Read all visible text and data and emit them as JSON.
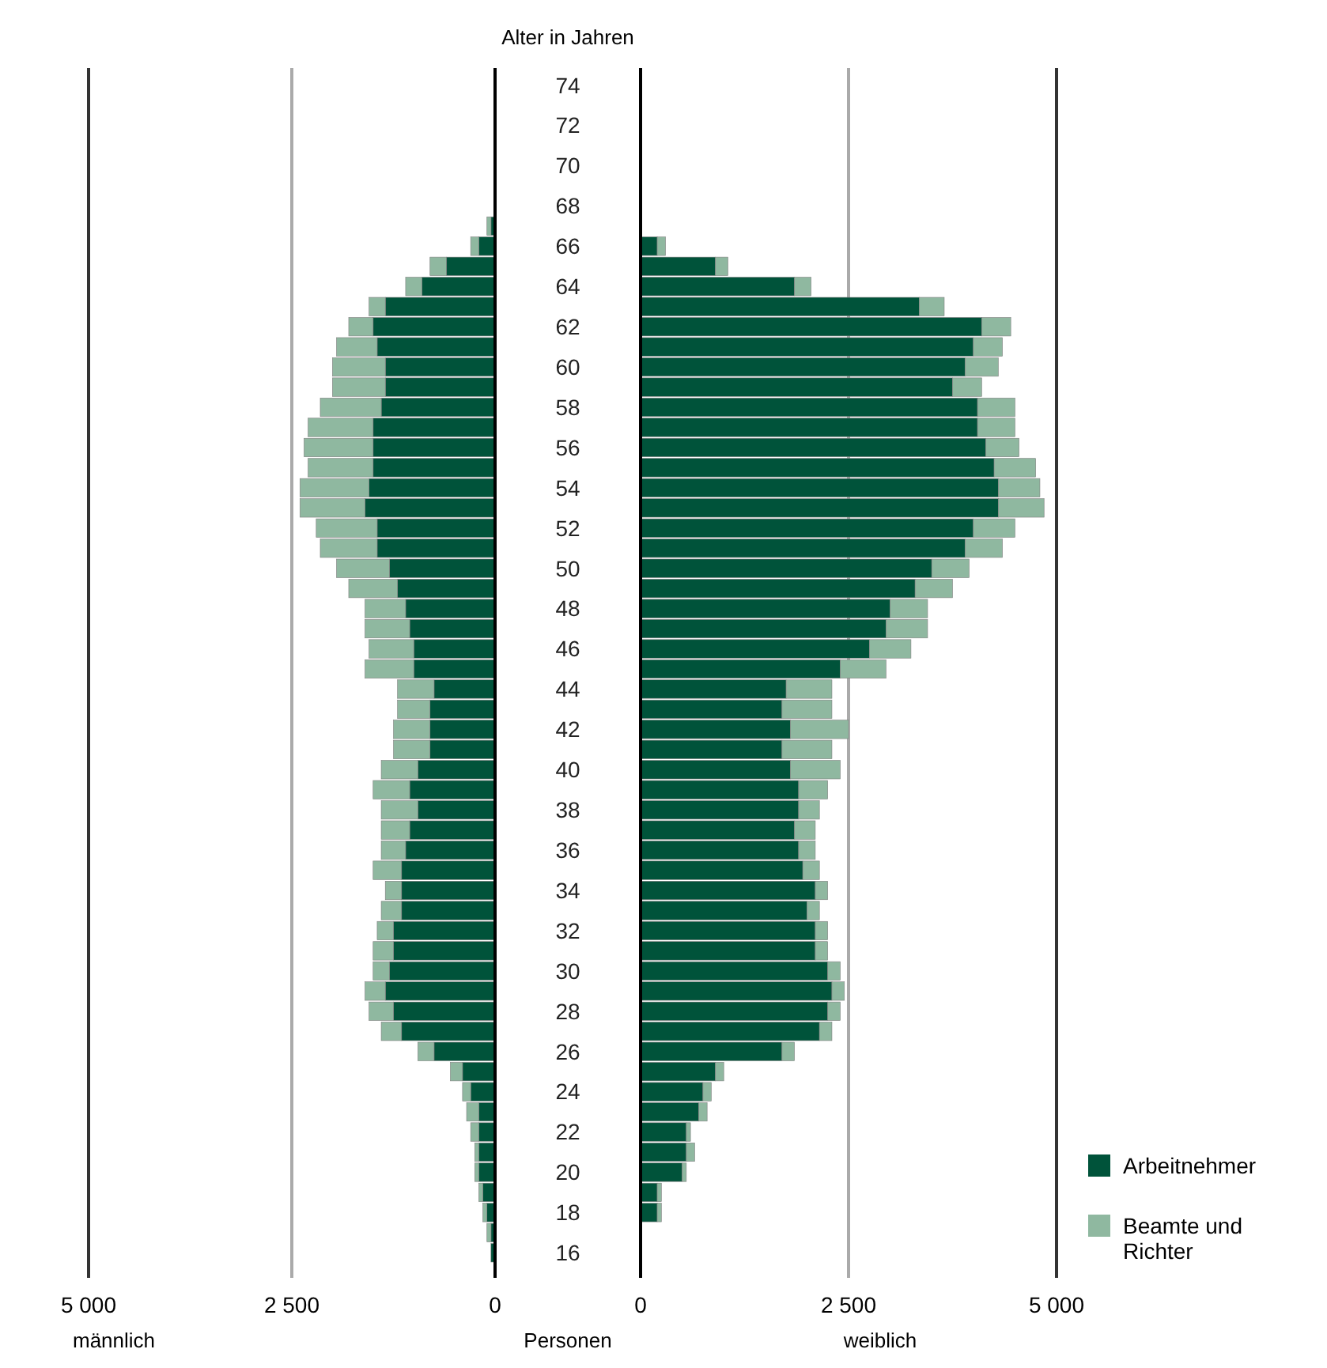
{
  "chart_data": [
    {
      "type": "bar",
      "orientation": "horizontal",
      "stacked": true,
      "ylabel": "Alter in Jahren",
      "xlabel": "männlich",
      "annotations": [
        "Personen"
      ],
      "categories": [
        "74",
        null,
        "72",
        null,
        "70",
        null,
        "68",
        null,
        "66",
        null,
        "64",
        null,
        "62",
        null,
        "60",
        null,
        "58",
        null,
        "56",
        null,
        "54",
        null,
        "52",
        null,
        "50",
        null,
        "48",
        null,
        "46",
        null,
        "44",
        null,
        "42",
        null,
        "40",
        null,
        "38",
        null,
        "36",
        null,
        "34",
        null,
        "32",
        null,
        "30",
        null,
        "28",
        null,
        "26",
        null,
        "24",
        null,
        "22",
        null,
        "20",
        null,
        "18",
        null,
        "16"
      ],
      "series": [
        {
          "color": "#00533a",
          "values": [
            null,
            null,
            null,
            null,
            null,
            null,
            null,
            50,
            200,
            600,
            900,
            1350,
            1500,
            1450,
            1350,
            1350,
            1400,
            1500,
            1500,
            1500,
            1550,
            1600,
            1450,
            1450,
            1300,
            1200,
            1100,
            1050,
            1000,
            1000,
            750,
            800,
            800,
            800,
            950,
            1050,
            950,
            1050,
            1100,
            1150,
            1150,
            1150,
            1250,
            1250,
            1300,
            1350,
            1250,
            1150,
            750,
            400,
            300,
            200,
            200,
            200,
            200,
            150,
            100,
            50,
            50
          ]
        },
        {
          "color": "#8fb8a0",
          "values": [
            null,
            null,
            null,
            null,
            null,
            null,
            null,
            50,
            100,
            200,
            200,
            200,
            300,
            500,
            650,
            650,
            750,
            800,
            850,
            800,
            850,
            800,
            750,
            700,
            650,
            600,
            500,
            550,
            550,
            600,
            450,
            400,
            450,
            450,
            450,
            450,
            450,
            350,
            300,
            350,
            200,
            250,
            200,
            250,
            200,
            250,
            300,
            250,
            200,
            150,
            100,
            150,
            100,
            50,
            50,
            50,
            50,
            50,
            null
          ]
        }
      ],
      "xlim": [
        5000,
        0
      ],
      "xticks": [
        5000,
        2500,
        0
      ],
      "grid": "x",
      "legend": false
    },
    {
      "type": "bar",
      "orientation": "horizontal",
      "stacked": true,
      "xlabel": "weiblich",
      "tick_labels": "x",
      "categories": [
        "74",
        null,
        "72",
        null,
        "70",
        null,
        "68",
        null,
        "66",
        null,
        "64",
        null,
        "62",
        null,
        "60",
        null,
        "58",
        null,
        "56",
        null,
        "54",
        null,
        "52",
        null,
        "50",
        null,
        "48",
        null,
        "46",
        null,
        "44",
        null,
        "42",
        null,
        "40",
        null,
        "38",
        null,
        "36",
        null,
        "34",
        null,
        "32",
        null,
        "30",
        null,
        "28",
        null,
        "26",
        null,
        "24",
        null,
        "22",
        null,
        "20",
        null,
        "18",
        null,
        "16"
      ],
      "series": [
        {
          "name": "Arbeitnehmer",
          "color": "#00533a",
          "values": [
            null,
            null,
            null,
            null,
            null,
            null,
            null,
            null,
            200,
            900,
            1850,
            3350,
            4100,
            4000,
            3900,
            3750,
            4050,
            4050,
            4150,
            4250,
            4300,
            4300,
            4000,
            3900,
            3500,
            3300,
            3000,
            2950,
            2750,
            2400,
            1750,
            1700,
            1800,
            1700,
            1800,
            1900,
            1900,
            1850,
            1900,
            1950,
            2100,
            2000,
            2100,
            2100,
            2250,
            2300,
            2250,
            2150,
            1700,
            900,
            750,
            700,
            550,
            550,
            500,
            200,
            200,
            null,
            null
          ]
        },
        {
          "name": "Beamte und Richter",
          "color": "#8fb8a0",
          "values": [
            null,
            null,
            null,
            null,
            null,
            null,
            null,
            null,
            100,
            150,
            200,
            300,
            350,
            350,
            400,
            350,
            450,
            450,
            400,
            500,
            500,
            550,
            500,
            450,
            450,
            450,
            450,
            500,
            500,
            550,
            550,
            600,
            700,
            600,
            600,
            350,
            250,
            250,
            200,
            200,
            150,
            150,
            150,
            150,
            150,
            150,
            150,
            150,
            150,
            100,
            100,
            100,
            50,
            100,
            50,
            50,
            50,
            null,
            null
          ]
        }
      ],
      "xlim": [
        0,
        5000
      ],
      "xticks": [
        0,
        2500,
        5000
      ],
      "grid": "x",
      "legend": "bottom right"
    }
  ]
}
